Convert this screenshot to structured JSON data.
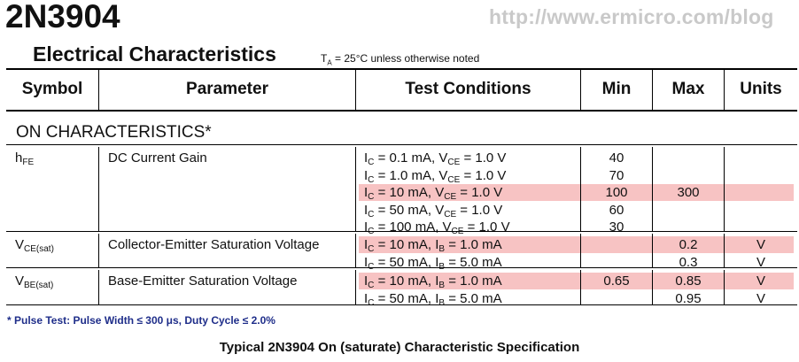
{
  "header": {
    "part_number": "2N3904",
    "url": "http://www.ermicro.com/blog",
    "title": "Electrical Characteristics",
    "condition_note": {
      "symbol": "T",
      "subscript": "A",
      "text": " = 25°C unless otherwise noted"
    }
  },
  "table": {
    "columns": [
      "Symbol",
      "Parameter",
      "Test Conditions",
      "Min",
      "Max",
      "Units"
    ],
    "section": "ON CHARACTERISTICS*",
    "groups": [
      {
        "symbol": {
          "main": "h",
          "sub": "FE"
        },
        "parameter": "DC Current Gain",
        "rows": [
          {
            "c1": {
              "sym": "I",
              "sub": "C",
              "val": " = 0.1 mA, "
            },
            "c2": {
              "sym": "V",
              "sub": "CE",
              "val": " = 1.0 V"
            },
            "min": "40",
            "max": "",
            "units": "",
            "highlight": false
          },
          {
            "c1": {
              "sym": "I",
              "sub": "C",
              "val": " = 1.0 mA, "
            },
            "c2": {
              "sym": "V",
              "sub": "CE",
              "val": " = 1.0 V"
            },
            "min": "70",
            "max": "",
            "units": "",
            "highlight": false
          },
          {
            "c1": {
              "sym": "I",
              "sub": "C",
              "val": " = 10 mA, "
            },
            "c2": {
              "sym": "V",
              "sub": "CE",
              "val": " = 1.0 V"
            },
            "min": "100",
            "max": "300",
            "units": "",
            "highlight": true
          },
          {
            "c1": {
              "sym": "I",
              "sub": "C",
              "val": " = 50 mA, "
            },
            "c2": {
              "sym": "V",
              "sub": "CE",
              "val": " = 1.0 V"
            },
            "min": "60",
            "max": "",
            "units": "",
            "highlight": false
          },
          {
            "c1": {
              "sym": "I",
              "sub": "C",
              "val": " = 100 mA, "
            },
            "c2": {
              "sym": "V",
              "sub": "CE",
              "val": " = 1.0 V"
            },
            "min": "30",
            "max": "",
            "units": "",
            "highlight": false
          }
        ]
      },
      {
        "symbol": {
          "main": "V",
          "sub": "CE(sat)"
        },
        "parameter": "Collector-Emitter Saturation Voltage",
        "rows": [
          {
            "c1": {
              "sym": "I",
              "sub": "C",
              "val": " = 10 mA, "
            },
            "c2": {
              "sym": "I",
              "sub": "B",
              "val": " = 1.0 mA"
            },
            "min": "",
            "max": "0.2",
            "units": "V",
            "highlight": true
          },
          {
            "c1": {
              "sym": "I",
              "sub": "C",
              "val": " = 50 mA, "
            },
            "c2": {
              "sym": "I",
              "sub": "B",
              "val": " = 5.0 mA"
            },
            "min": "",
            "max": "0.3",
            "units": "V",
            "highlight": false
          }
        ]
      },
      {
        "symbol": {
          "main": "V",
          "sub": "BE(sat)"
        },
        "parameter": "Base-Emitter Saturation Voltage",
        "rows": [
          {
            "c1": {
              "sym": "I",
              "sub": "C",
              "val": " = 10 mA, "
            },
            "c2": {
              "sym": "I",
              "sub": "B",
              "val": " = 1.0 mA"
            },
            "min": "0.65",
            "max": "0.85",
            "units": "V",
            "highlight": true
          },
          {
            "c1": {
              "sym": "I",
              "sub": "C",
              "val": " = 50 mA, "
            },
            "c2": {
              "sym": "I",
              "sub": "B",
              "val": " = 5.0 mA"
            },
            "min": "",
            "max": "0.95",
            "units": "V",
            "highlight": false
          }
        ]
      }
    ]
  },
  "footnote": "* Pulse Test: Pulse Width ≤ 300 μs, Duty Cycle ≤ 2.0%",
  "caption": "Typical 2N3904 On (saturate) Characteristic Specification",
  "colors": {
    "highlight": "#f7c3c3",
    "footnote": "#1f2e8a",
    "url": "#c9c9c9"
  }
}
